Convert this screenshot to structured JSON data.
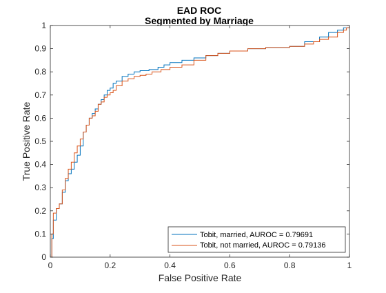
{
  "chart_data": {
    "type": "line",
    "title": "EAD ROC",
    "subtitle": "Segmented by Marriage",
    "xlabel": "False Positive Rate",
    "ylabel": "True Positive Rate",
    "xlim": [
      0,
      1
    ],
    "ylim": [
      0,
      1
    ],
    "xticks": [
      "0",
      "0.2",
      "0.4",
      "0.6",
      "0.8",
      "1"
    ],
    "yticks": [
      "0",
      "0.1",
      "0.2",
      "0.3",
      "0.4",
      "0.5",
      "0.6",
      "0.7",
      "0.8",
      "0.9",
      "1"
    ],
    "grid": false,
    "legend_position": "bottom-right",
    "series": [
      {
        "name": "Tobit, married, AUROC = 0.79691",
        "color": "#0072BD",
        "points": [
          [
            0,
            0
          ],
          [
            0.005,
            0.08
          ],
          [
            0.01,
            0.16
          ],
          [
            0.02,
            0.21
          ],
          [
            0.03,
            0.23
          ],
          [
            0.04,
            0.28
          ],
          [
            0.05,
            0.33
          ],
          [
            0.06,
            0.36
          ],
          [
            0.07,
            0.38
          ],
          [
            0.08,
            0.41
          ],
          [
            0.09,
            0.44
          ],
          [
            0.1,
            0.48
          ],
          [
            0.11,
            0.54
          ],
          [
            0.12,
            0.57
          ],
          [
            0.13,
            0.6
          ],
          [
            0.14,
            0.62
          ],
          [
            0.15,
            0.64
          ],
          [
            0.16,
            0.66
          ],
          [
            0.17,
            0.68
          ],
          [
            0.18,
            0.7
          ],
          [
            0.19,
            0.72
          ],
          [
            0.2,
            0.73
          ],
          [
            0.21,
            0.75
          ],
          [
            0.22,
            0.76
          ],
          [
            0.24,
            0.78
          ],
          [
            0.26,
            0.79
          ],
          [
            0.28,
            0.8
          ],
          [
            0.3,
            0.805
          ],
          [
            0.33,
            0.81
          ],
          [
            0.36,
            0.82
          ],
          [
            0.38,
            0.83
          ],
          [
            0.4,
            0.84
          ],
          [
            0.44,
            0.85
          ],
          [
            0.48,
            0.86
          ],
          [
            0.52,
            0.87
          ],
          [
            0.56,
            0.88
          ],
          [
            0.6,
            0.89
          ],
          [
            0.66,
            0.9
          ],
          [
            0.72,
            0.905
          ],
          [
            0.8,
            0.91
          ],
          [
            0.85,
            0.93
          ],
          [
            0.9,
            0.95
          ],
          [
            0.93,
            0.97
          ],
          [
            0.96,
            0.98
          ],
          [
            0.98,
            0.99
          ],
          [
            1,
            1
          ]
        ]
      },
      {
        "name": "Tobit, not married, AUROC = 0.79136",
        "color": "#D95319",
        "points": [
          [
            0,
            0
          ],
          [
            0.005,
            0.1
          ],
          [
            0.01,
            0.19
          ],
          [
            0.02,
            0.21
          ],
          [
            0.03,
            0.23
          ],
          [
            0.04,
            0.29
          ],
          [
            0.05,
            0.34
          ],
          [
            0.06,
            0.38
          ],
          [
            0.07,
            0.41
          ],
          [
            0.08,
            0.45
          ],
          [
            0.09,
            0.48
          ],
          [
            0.1,
            0.51
          ],
          [
            0.11,
            0.54
          ],
          [
            0.12,
            0.57
          ],
          [
            0.13,
            0.6
          ],
          [
            0.14,
            0.61
          ],
          [
            0.15,
            0.63
          ],
          [
            0.16,
            0.66
          ],
          [
            0.17,
            0.67
          ],
          [
            0.18,
            0.69
          ],
          [
            0.19,
            0.7
          ],
          [
            0.2,
            0.71
          ],
          [
            0.21,
            0.72
          ],
          [
            0.22,
            0.74
          ],
          [
            0.24,
            0.76
          ],
          [
            0.26,
            0.77
          ],
          [
            0.28,
            0.78
          ],
          [
            0.3,
            0.785
          ],
          [
            0.32,
            0.79
          ],
          [
            0.34,
            0.8
          ],
          [
            0.37,
            0.81
          ],
          [
            0.4,
            0.82
          ],
          [
            0.44,
            0.83
          ],
          [
            0.48,
            0.85
          ],
          [
            0.52,
            0.87
          ],
          [
            0.56,
            0.88
          ],
          [
            0.6,
            0.89
          ],
          [
            0.66,
            0.9
          ],
          [
            0.72,
            0.905
          ],
          [
            0.8,
            0.91
          ],
          [
            0.85,
            0.92
          ],
          [
            0.88,
            0.93
          ],
          [
            0.9,
            0.94
          ],
          [
            0.93,
            0.95
          ],
          [
            0.96,
            0.97
          ],
          [
            0.98,
            0.98
          ],
          [
            0.99,
            0.99
          ],
          [
            1,
            1
          ]
        ]
      }
    ]
  }
}
